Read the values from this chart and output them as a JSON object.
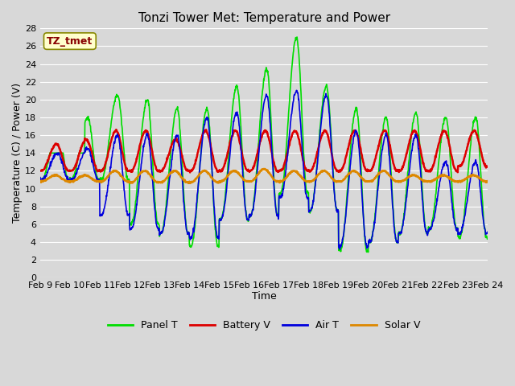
{
  "title": "Tonzi Tower Met: Temperature and Power",
  "xlabel": "Time",
  "ylabel": "Temperature (C) / Power (V)",
  "ylim": [
    0,
    28
  ],
  "yticks": [
    0,
    2,
    4,
    6,
    8,
    10,
    12,
    14,
    16,
    18,
    20,
    22,
    24,
    26,
    28
  ],
  "xtick_labels": [
    "Feb 9",
    "Feb 10",
    "Feb 11",
    "Feb 12",
    "Feb 13",
    "Feb 14",
    "Feb 15",
    "Feb 16",
    "Feb 17",
    "Feb 18",
    "Feb 19",
    "Feb 20",
    "Feb 21",
    "Feb 22",
    "Feb 23",
    "Feb 24"
  ],
  "legend_label": "TZ_tmet",
  "series": {
    "Panel T": {
      "color": "#00dd00",
      "linewidth": 1.2
    },
    "Battery V": {
      "color": "#dd0000",
      "linewidth": 1.8
    },
    "Air T": {
      "color": "#0000dd",
      "linewidth": 1.2
    },
    "Solar V": {
      "color": "#dd8800",
      "linewidth": 1.8
    }
  },
  "bg_color": "#d8d8d8",
  "plot_bg": "#d8d8d8",
  "grid_color": "#ffffff",
  "annotation_box_color": "#ffffcc",
  "annotation_text_color": "#880000",
  "annotation_edge_color": "#888800",
  "tick_fontsize": 8,
  "title_fontsize": 11,
  "label_fontsize": 9,
  "legend_fontsize": 9
}
